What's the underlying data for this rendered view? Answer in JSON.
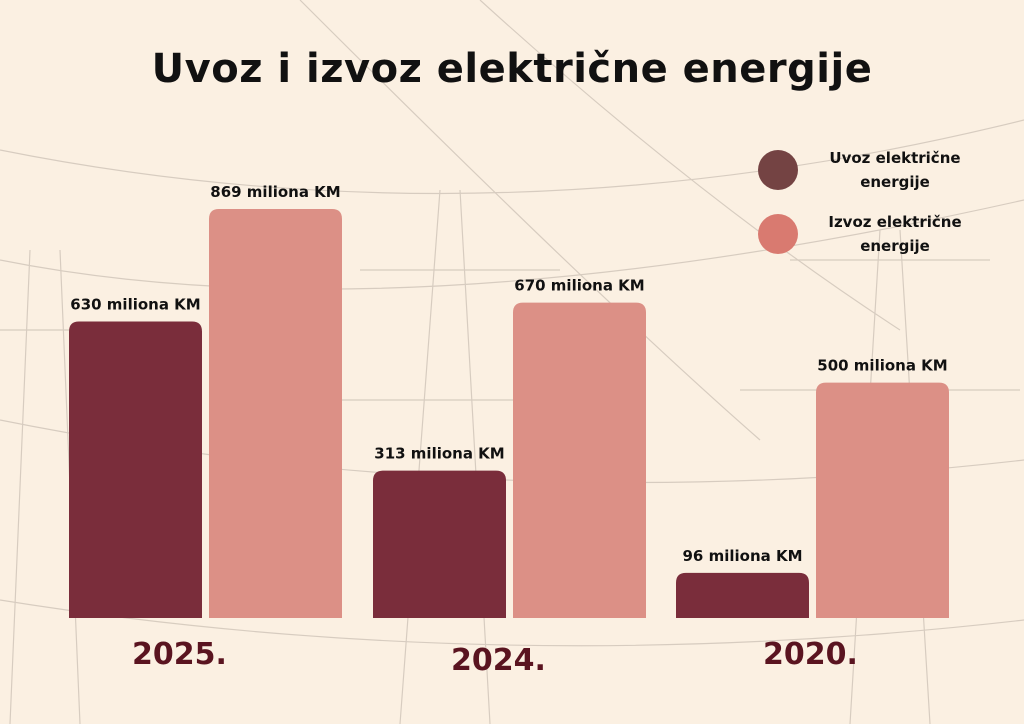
{
  "chart_data": {
    "type": "bar",
    "title": "Uvoz i izvoz električne energije",
    "categories": [
      "2025.",
      "2024.",
      "2020."
    ],
    "series": [
      {
        "name": "Uvoz električne energije",
        "values": [
          630,
          313,
          96
        ],
        "labels": [
          "630 miliona KM",
          "313 miliona KM",
          "96 miliona KM"
        ],
        "color": "#7a2d3b"
      },
      {
        "name": "Izvoz električne energije",
        "values": [
          869,
          670,
          500
        ],
        "labels": [
          "869 miliona KM",
          "670 miliona KM",
          "500 miliona KM"
        ],
        "color": "#dc9086"
      }
    ],
    "legend": {
      "placement": "top-right",
      "colors": [
        "#744343",
        "#d97a70"
      ],
      "lines": [
        [
          "Uvoz električne",
          "energije"
        ],
        [
          "Izvoz električne",
          "energije"
        ]
      ]
    },
    "ylim": [
      0,
      869
    ],
    "grid": false,
    "background": "#fbf0e2"
  }
}
